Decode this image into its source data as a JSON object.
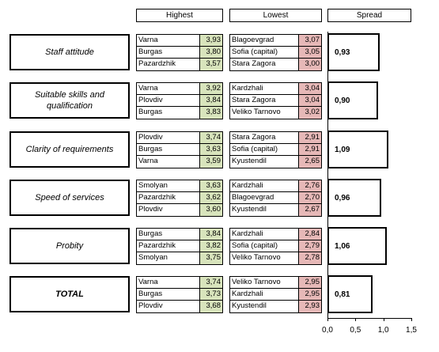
{
  "headers": {
    "highest": "Highest",
    "lowest": "Lowest",
    "spread": "Spread"
  },
  "chart_data": {
    "type": "bar",
    "orientation": "horizontal",
    "categories": [
      "Staff attitude",
      "Suitable skills and qualification",
      "Clarity of requirements",
      "Speed of services",
      "Probity",
      "TOTAL"
    ],
    "values": [
      0.93,
      0.9,
      1.09,
      0.96,
      1.06,
      0.81
    ],
    "value_labels": [
      "0,93",
      "0,90",
      "1,09",
      "0,96",
      "1,06",
      "0,81"
    ],
    "xlim": [
      0,
      1.5
    ],
    "x_ticks": [
      0,
      0.5,
      1.0,
      1.5
    ],
    "x_tick_labels": [
      "0,0",
      "0,5",
      "1,0",
      "1,5"
    ],
    "groups": [
      {
        "category": "Staff attitude",
        "highest": [
          {
            "name": "Varna",
            "value": "3,93"
          },
          {
            "name": "Burgas",
            "value": "3,80"
          },
          {
            "name": "Pazardzhik",
            "value": "3,57"
          }
        ],
        "lowest": [
          {
            "name": "Blagoevgrad",
            "value": "3,07"
          },
          {
            "name": "Sofia (capital)",
            "value": "3,05"
          },
          {
            "name": "Stara Zagora",
            "value": "3,00"
          }
        ]
      },
      {
        "category": "Suitable skills and qualification",
        "highest": [
          {
            "name": "Varna",
            "value": "3,92"
          },
          {
            "name": "Plovdiv",
            "value": "3,84"
          },
          {
            "name": "Burgas",
            "value": "3,83"
          }
        ],
        "lowest": [
          {
            "name": "Kardzhali",
            "value": "3,04"
          },
          {
            "name": "Stara Zagora",
            "value": "3,04"
          },
          {
            "name": "Veliko Tarnovo",
            "value": "3,02"
          }
        ]
      },
      {
        "category": "Clarity of requirements",
        "highest": [
          {
            "name": "Plovdiv",
            "value": "3,74"
          },
          {
            "name": "Burgas",
            "value": "3,63"
          },
          {
            "name": "Varna",
            "value": "3,59"
          }
        ],
        "lowest": [
          {
            "name": "Stara Zagora",
            "value": "2,91"
          },
          {
            "name": "Sofia (capital)",
            "value": "2,91"
          },
          {
            "name": "Kyustendil",
            "value": "2,65"
          }
        ]
      },
      {
        "category": "Speed of services",
        "highest": [
          {
            "name": "Smolyan",
            "value": "3,63"
          },
          {
            "name": "Pazardzhik",
            "value": "3,62"
          },
          {
            "name": "Plovdiv",
            "value": "3,60"
          }
        ],
        "lowest": [
          {
            "name": "Kardzhali",
            "value": "2,76"
          },
          {
            "name": "Blagoevgrad",
            "value": "2,70"
          },
          {
            "name": "Kyustendil",
            "value": "2,67"
          }
        ]
      },
      {
        "category": "Probity",
        "highest": [
          {
            "name": "Burgas",
            "value": "3,84"
          },
          {
            "name": "Pazardzhik",
            "value": "3,82"
          },
          {
            "name": "Smolyan",
            "value": "3,75"
          }
        ],
        "lowest": [
          {
            "name": "Kardzhali",
            "value": "2,84"
          },
          {
            "name": "Sofia (capital)",
            "value": "2,79"
          },
          {
            "name": "Veliko Tarnovo",
            "value": "2,78"
          }
        ]
      },
      {
        "category": "TOTAL",
        "highest": [
          {
            "name": "Varna",
            "value": "3,74"
          },
          {
            "name": "Burgas",
            "value": "3,73"
          },
          {
            "name": "Plovdiv",
            "value": "3,68"
          }
        ],
        "lowest": [
          {
            "name": "Veliko Tarnovo",
            "value": "2,95"
          },
          {
            "name": "Kardzhali",
            "value": "2,95"
          },
          {
            "name": "Kyustendil",
            "value": "2,93"
          }
        ]
      }
    ],
    "colors": {
      "highest_fill": "#d8e4bc",
      "lowest_fill": "#e6b8b7"
    }
  }
}
